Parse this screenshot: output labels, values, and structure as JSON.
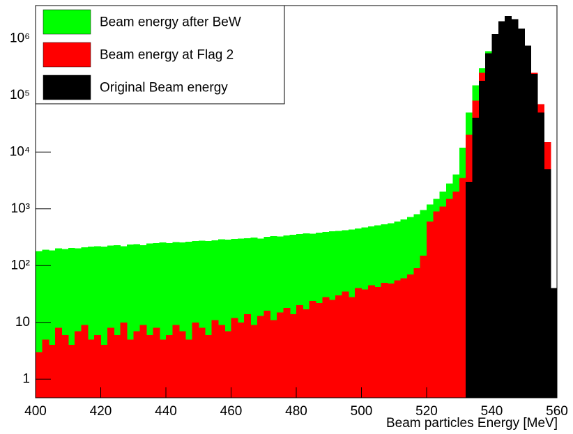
{
  "chart_data": {
    "type": "histogram",
    "xlabel": "Beam particles Energy [MeV]",
    "log_y": true,
    "legend": "top-left",
    "xlim": [
      400,
      560
    ],
    "ylim": [
      0.47,
      3800000
    ],
    "xticks": [
      400,
      420,
      440,
      460,
      480,
      500,
      520,
      540,
      560
    ],
    "yticks": [
      1,
      10,
      {
        "value": 100,
        "label": "10²"
      },
      {
        "value": 1000,
        "label": "10³"
      },
      {
        "value": 10000,
        "label": "10⁴"
      },
      {
        "value": 100000,
        "label": "10⁵"
      },
      {
        "value": 1000000,
        "label": "10⁶"
      }
    ],
    "bins": [
      400,
      402,
      404,
      406,
      408,
      410,
      412,
      414,
      416,
      418,
      420,
      422,
      424,
      426,
      428,
      430,
      432,
      434,
      436,
      438,
      440,
      442,
      444,
      446,
      448,
      450,
      452,
      454,
      456,
      458,
      460,
      462,
      464,
      466,
      468,
      470,
      472,
      474,
      476,
      478,
      480,
      482,
      484,
      486,
      488,
      490,
      492,
      494,
      496,
      498,
      500,
      502,
      504,
      506,
      508,
      510,
      512,
      514,
      516,
      518,
      520,
      522,
      524,
      526,
      528,
      530,
      532,
      534,
      536,
      538,
      540,
      542,
      544,
      546,
      548,
      550,
      552,
      554,
      556,
      558,
      560
    ],
    "series": [
      {
        "name": "Beam energy after BeW",
        "color": "#00ff00",
        "values": [
          180,
          190,
          185,
          200,
          195,
          205,
          200,
          210,
          215,
          220,
          215,
          225,
          230,
          220,
          235,
          240,
          230,
          245,
          250,
          255,
          250,
          260,
          255,
          265,
          270,
          275,
          270,
          280,
          290,
          285,
          295,
          300,
          305,
          310,
          300,
          320,
          330,
          325,
          340,
          350,
          360,
          370,
          365,
          380,
          390,
          400,
          410,
          420,
          430,
          450,
          470,
          490,
          510,
          530,
          560,
          600,
          650,
          720,
          800,
          950,
          1200,
          1500,
          2000,
          2800,
          4000,
          12000,
          50000,
          150000,
          300000,
          600000,
          1100000,
          1800000,
          2200000,
          2000000,
          1400000,
          700000,
          250000,
          50000,
          8000,
          2
        ]
      },
      {
        "name": "Beam energy at Flag 2",
        "color": "#ff0000",
        "values": [
          3,
          5,
          4,
          8,
          6,
          4,
          7,
          9,
          5,
          6,
          4,
          8,
          6,
          10,
          5,
          7,
          9,
          6,
          8,
          5,
          6,
          9,
          7,
          5,
          10,
          8,
          6,
          11,
          9,
          7,
          12,
          10,
          14,
          9,
          13,
          16,
          11,
          15,
          18,
          14,
          20,
          17,
          24,
          22,
          28,
          25,
          30,
          35,
          28,
          40,
          38,
          45,
          42,
          50,
          48,
          55,
          60,
          70,
          90,
          150,
          600,
          900,
          1100,
          1500,
          2000,
          3500,
          20000,
          80000,
          250000,
          500000,
          1000000,
          1700000,
          2100000,
          1900000,
          1300000,
          650000,
          250000,
          70000,
          15000,
          3
        ]
      },
      {
        "name": "Original Beam energy",
        "color": "#000000",
        "values": [
          0,
          0,
          0,
          0,
          0,
          0,
          0,
          0,
          0,
          0,
          0,
          0,
          0,
          0,
          0,
          0,
          0,
          0,
          0,
          0,
          0,
          0,
          0,
          0,
          0,
          0,
          0,
          0,
          0,
          0,
          0,
          0,
          0,
          0,
          0,
          0,
          0,
          0,
          0,
          0,
          0,
          0,
          0,
          0,
          0,
          0,
          0,
          0,
          0,
          0,
          0,
          0,
          0,
          0,
          0,
          0,
          0,
          0,
          0,
          0,
          0,
          0,
          0,
          0,
          0,
          0,
          3000,
          40000,
          180000,
          550000,
          1200000,
          2000000,
          2500000,
          2200000,
          1500000,
          750000,
          240000,
          50000,
          5000,
          40
        ]
      }
    ]
  }
}
